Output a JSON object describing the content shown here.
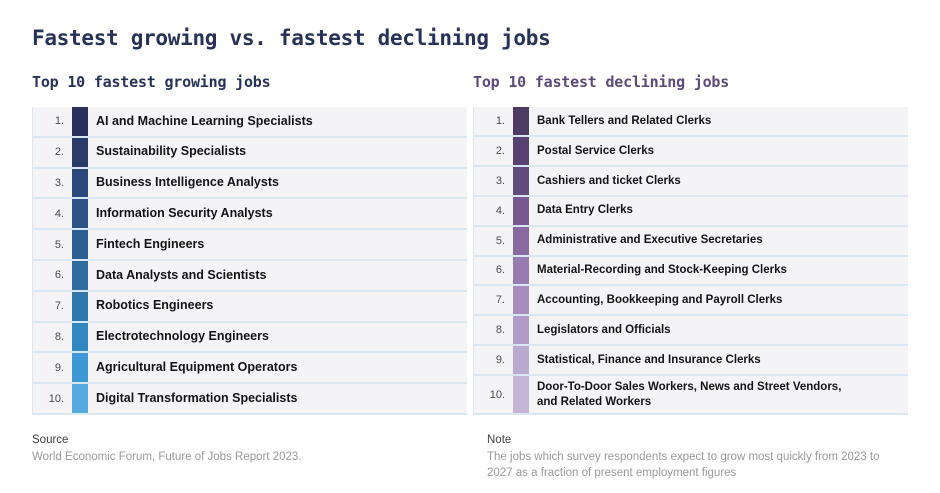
{
  "title": "Fastest growing vs. fastest declining jobs",
  "growing": {
    "heading": "Top 10 fastest growing jobs",
    "accent_color": "#273259",
    "items": [
      {
        "rank": "1.",
        "label": "AI and Machine Learning Specialists",
        "color": "#272f5a"
      },
      {
        "rank": "2.",
        "label": "Sustainability Specialists",
        "color": "#2a3a6b"
      },
      {
        "rank": "3.",
        "label": "Business Intelligence Analysts",
        "color": "#2c477b"
      },
      {
        "rank": "4.",
        "label": "Information Security Analysts",
        "color": "#2d5286"
      },
      {
        "rank": "5.",
        "label": "Fintech Engineers",
        "color": "#2e5f92"
      },
      {
        "rank": "6.",
        "label": "Data Analysts and Scientists",
        "color": "#2f6b9e"
      },
      {
        "rank": "7.",
        "label": "Robotics Engineers",
        "color": "#3078ac"
      },
      {
        "rank": "8.",
        "label": "Electrotechnology Engineers",
        "color": "#3287bf"
      },
      {
        "rank": "9.",
        "label": "Agricultural Equipment Operators",
        "color": "#3f97d3"
      },
      {
        "rank": "10.",
        "label": "Digital Transformation Specialists",
        "color": "#55a9de"
      }
    ]
  },
  "declining": {
    "heading": "Top 10 fastest declining jobs",
    "accent_color": "#5d4a7b",
    "items": [
      {
        "rank": "1.",
        "label": "Bank Tellers and Related Clerks",
        "color": "#4e3b64"
      },
      {
        "rank": "2.",
        "label": "Postal Service Clerks",
        "color": "#574170"
      },
      {
        "rank": "3.",
        "label": "Cashiers and ticket Clerks",
        "color": "#614b7b"
      },
      {
        "rank": "4.",
        "label": "Data Entry Clerks",
        "color": "#77598f"
      },
      {
        "rank": "5.",
        "label": "Administrative and Executive Secretaries",
        "color": "#8869a0"
      },
      {
        "rank": "6.",
        "label": "Material-Recording and Stock-Keeping Clerks",
        "color": "#987bb0"
      },
      {
        "rank": "7.",
        "label": "Accounting, Bookkeeping and Payroll Clerks",
        "color": "#a68dbd"
      },
      {
        "rank": "8.",
        "label": "Legislators and Officials",
        "color": "#b09cc7"
      },
      {
        "rank": "9.",
        "label": "Statistical, Finance and Insurance Clerks",
        "color": "#bba9d0"
      },
      {
        "rank": "10.",
        "label": "Door-To-Door Sales Workers, News and Street Vendors,\nand Related Workers",
        "color": "#c5b4d6"
      }
    ]
  },
  "source": {
    "label": "Source",
    "text": "World Economic Forum, Future of Jobs Report 2023."
  },
  "note": {
    "label": "Note",
    "text": "The jobs which survey respondents expect to grow most quickly from 2023 to\n2027 as a fraction of present employment figures"
  },
  "chart_data": {
    "type": "table",
    "title": "Fastest growing vs. fastest declining jobs",
    "tables": [
      {
        "title": "Top 10 fastest growing jobs",
        "ranks": [
          1,
          2,
          3,
          4,
          5,
          6,
          7,
          8,
          9,
          10
        ],
        "labels": [
          "AI and Machine Learning Specialists",
          "Sustainability Specialists",
          "Business Intelligence Analysts",
          "Information Security Analysts",
          "Fintech Engineers",
          "Data Analysts and Scientists",
          "Robotics Engineers",
          "Electrotechnology Engineers",
          "Agricultural Equipment Operators",
          "Digital Transformation Specialists"
        ],
        "color_scale": [
          "#272f5a",
          "#55a9de"
        ]
      },
      {
        "title": "Top 10 fastest declining jobs",
        "ranks": [
          1,
          2,
          3,
          4,
          5,
          6,
          7,
          8,
          9,
          10
        ],
        "labels": [
          "Bank Tellers and Related Clerks",
          "Postal Service Clerks",
          "Cashiers and ticket Clerks",
          "Data Entry Clerks",
          "Administrative and Executive Secretaries",
          "Material-Recording and Stock-Keeping Clerks",
          "Accounting, Bookkeeping and Payroll Clerks",
          "Legislators and Officials",
          "Statistical, Finance and Insurance Clerks",
          "Door-To-Door Sales Workers, News and Street Vendors, and Related Workers"
        ],
        "color_scale": [
          "#4e3b64",
          "#c5b4d6"
        ]
      }
    ]
  }
}
